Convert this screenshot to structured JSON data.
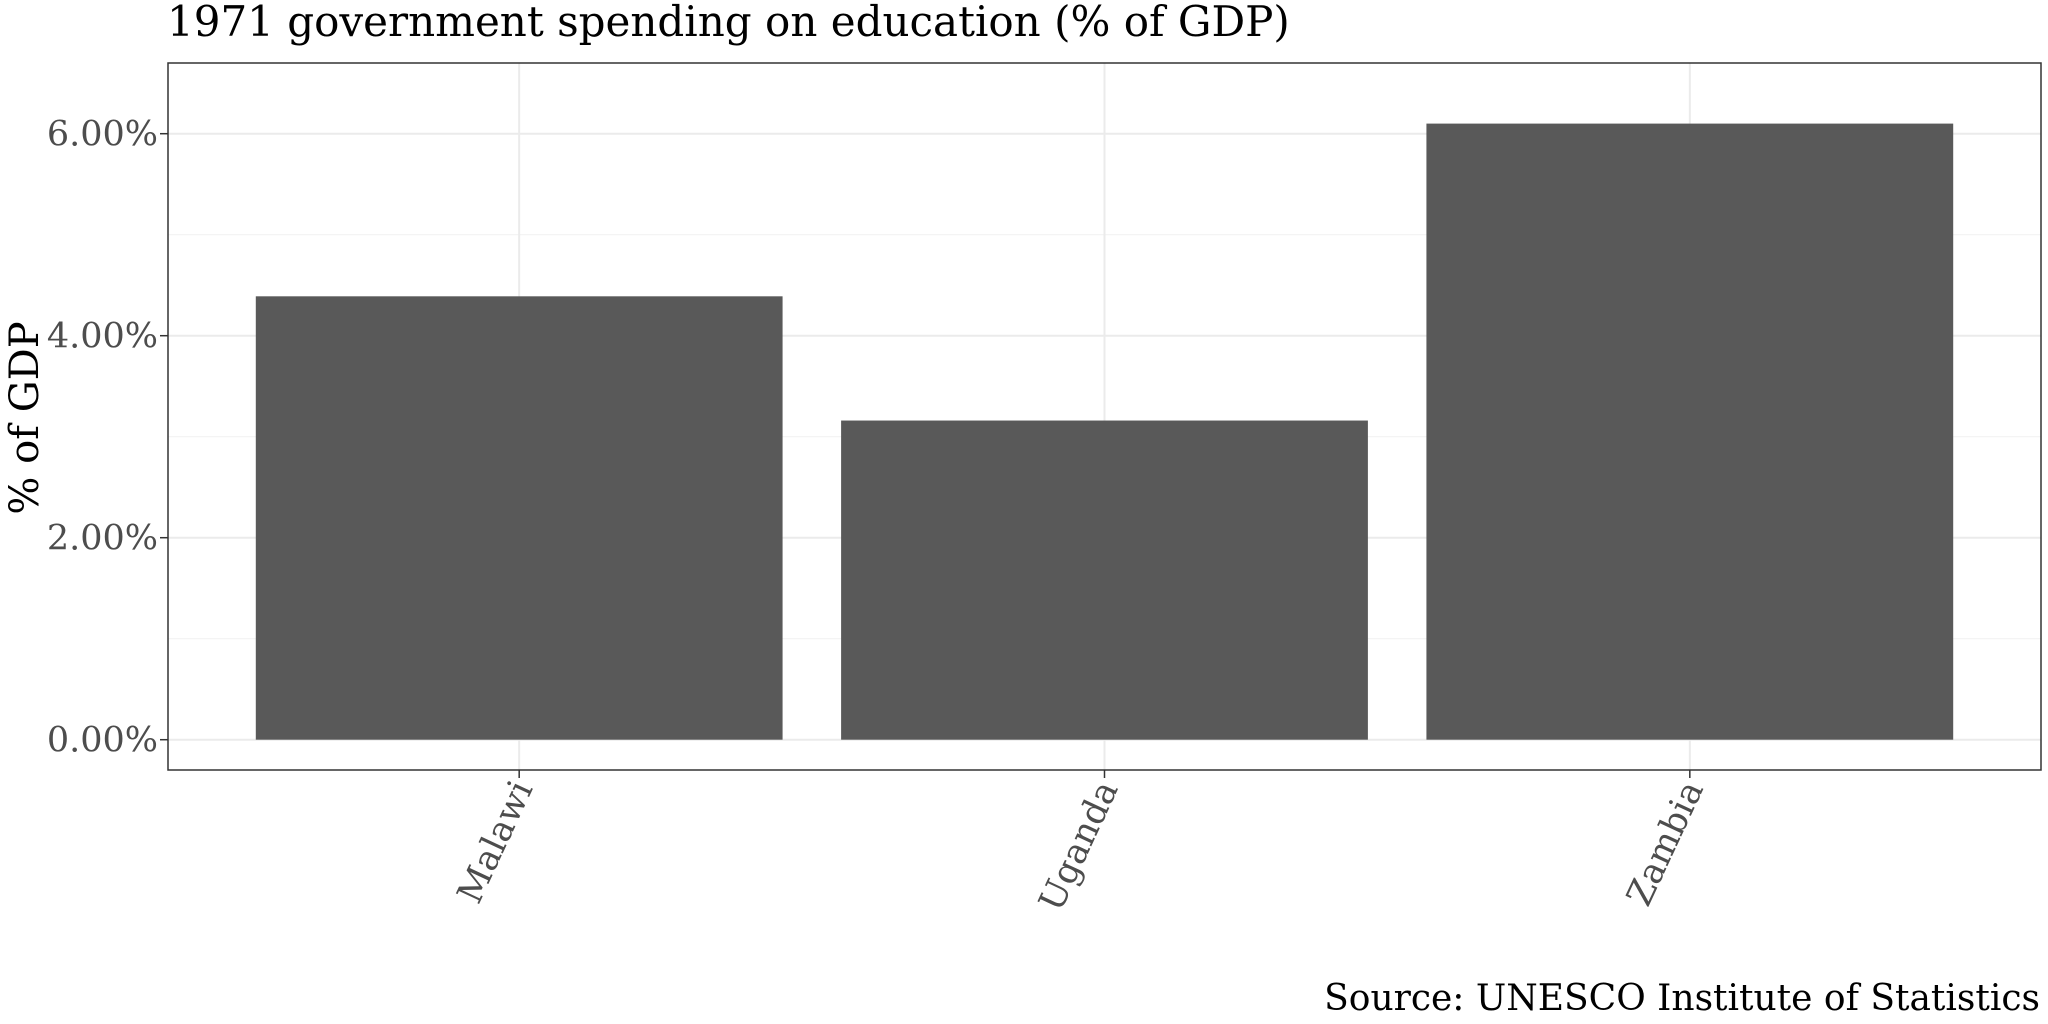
{
  "chart_data": {
    "type": "bar",
    "title": "1971 government spending on education (% of GDP)",
    "xlabel": "",
    "ylabel": "% of GDP",
    "categories": [
      "Malawi",
      "Uganda",
      "Zambia"
    ],
    "values": [
      4.39,
      3.16,
      6.1
    ],
    "ylim": [
      -0.3,
      6.7
    ],
    "yticks": [
      0,
      2,
      4,
      6
    ],
    "ytick_labels": [
      "0.00%",
      "2.00%",
      "4.00%",
      "6.00%"
    ],
    "grid": true,
    "bar_color": "#595959",
    "caption": "Source: UNESCO Institute of Statistics"
  }
}
